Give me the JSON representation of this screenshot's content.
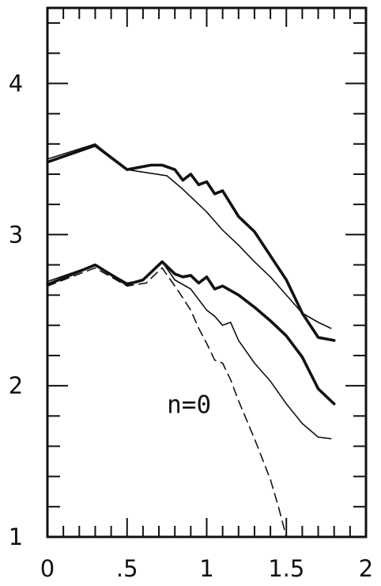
{
  "chart_data": {
    "type": "line",
    "xlim": [
      0,
      2
    ],
    "ylim": [
      1,
      4.5
    ],
    "x_ticks": [
      {
        "value": 0,
        "label": "0"
      },
      {
        "value": 0.5,
        "label": ".5"
      },
      {
        "value": 1,
        "label": "1"
      },
      {
        "value": 1.5,
        "label": "1.5"
      },
      {
        "value": 2,
        "label": "2"
      }
    ],
    "y_ticks": [
      {
        "value": 1,
        "label": "1"
      },
      {
        "value": 2,
        "label": "2"
      },
      {
        "value": 3,
        "label": "3"
      },
      {
        "value": 4,
        "label": "4"
      }
    ],
    "grid": false,
    "annotation": {
      "text": "n=0",
      "x": 0.75,
      "y": 1.82
    },
    "series": [
      {
        "style": "thick",
        "x": [
          0,
          0.3,
          0.5,
          0.65,
          0.72,
          0.8,
          0.85,
          0.9,
          0.95,
          1.0,
          1.05,
          1.1,
          1.2,
          1.3,
          1.4,
          1.5,
          1.6,
          1.7,
          1.8
        ],
        "y": [
          3.48,
          3.59,
          3.43,
          3.46,
          3.46,
          3.43,
          3.36,
          3.4,
          3.33,
          3.35,
          3.27,
          3.29,
          3.12,
          3.02,
          2.86,
          2.7,
          2.48,
          2.32,
          2.3
        ]
      },
      {
        "style": "thin",
        "x": [
          0,
          0.3,
          0.5,
          0.75,
          0.85,
          0.95,
          1.0,
          1.1,
          1.2,
          1.3,
          1.4,
          1.5,
          1.6,
          1.7,
          1.78
        ],
        "y": [
          3.5,
          3.6,
          3.43,
          3.39,
          3.3,
          3.2,
          3.15,
          3.03,
          2.93,
          2.82,
          2.72,
          2.6,
          2.48,
          2.42,
          2.38
        ]
      },
      {
        "style": "thick",
        "x": [
          0,
          0.3,
          0.5,
          0.6,
          0.72,
          0.8,
          0.85,
          0.9,
          0.95,
          1.0,
          1.05,
          1.1,
          1.2,
          1.3,
          1.4,
          1.5,
          1.6,
          1.7,
          1.8
        ],
        "y": [
          2.67,
          2.8,
          2.67,
          2.7,
          2.82,
          2.74,
          2.72,
          2.73,
          2.68,
          2.72,
          2.64,
          2.66,
          2.6,
          2.52,
          2.43,
          2.33,
          2.19,
          1.98,
          1.88
        ]
      },
      {
        "style": "thin",
        "x": [
          0,
          0.3,
          0.5,
          0.6,
          0.72,
          0.8,
          0.9,
          1.0,
          1.05,
          1.1,
          1.15,
          1.2,
          1.3,
          1.4,
          1.5,
          1.6,
          1.7,
          1.78
        ],
        "y": [
          2.69,
          2.8,
          2.68,
          2.7,
          2.82,
          2.7,
          2.64,
          2.5,
          2.46,
          2.4,
          2.42,
          2.3,
          2.15,
          2.03,
          1.88,
          1.75,
          1.66,
          1.65
        ]
      },
      {
        "style": "dashed",
        "x": [
          0,
          0.3,
          0.5,
          0.62,
          0.72,
          0.82,
          0.9,
          0.95,
          1.0,
          1.05,
          1.1,
          1.15,
          1.2,
          1.3,
          1.4,
          1.45,
          1.48,
          1.5
        ],
        "y": [
          2.66,
          2.78,
          2.66,
          2.68,
          2.78,
          2.63,
          2.5,
          2.38,
          2.28,
          2.17,
          2.15,
          2.04,
          1.9,
          1.65,
          1.38,
          1.2,
          1.08,
          1.0
        ]
      }
    ]
  }
}
